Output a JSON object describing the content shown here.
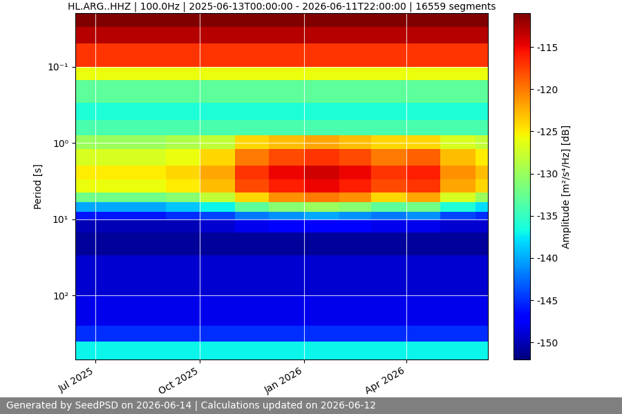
{
  "chart_data": {
    "type": "heatmap",
    "title": "HL.ARG..HHZ | 100.0Hz | 2025-06-13T00:00:00 - 2026-06-11T22:00:00 | 16559 segments",
    "y_label": "Period [s]",
    "colorbar_label": "Amplitude [m²/s⁴/Hz] [dB]",
    "footer": "Generated by SeedPSD on 2026-06-14 | Calculations updated on 2026-06-12",
    "log": "y",
    "grid": true,
    "xlim": [
      "2025-06-13T00:00:00",
      "2026-06-11T22:00:00"
    ],
    "xticks": [
      {
        "value": "2025-07-01",
        "label": "Jul 2025"
      },
      {
        "value": "2025-10-01",
        "label": "Oct 2025"
      },
      {
        "value": "2026-01-01",
        "label": "Jan 2026"
      },
      {
        "value": "2026-04-01",
        "label": "Apr 2026"
      }
    ],
    "ylim": [
      686,
      0.02
    ],
    "yticks": [
      {
        "value": 0.1,
        "label": "10⁻¹"
      },
      {
        "value": 1,
        "label": "10⁰"
      },
      {
        "value": 10,
        "label": "10¹"
      },
      {
        "value": 100,
        "label": "10²"
      }
    ],
    "clim": [
      -152,
      -111
    ],
    "cticks": [
      -150,
      -145,
      -140,
      -135,
      -130,
      -125,
      -120,
      -115
    ],
    "x_edges": [
      "2025-06-13T00:00:00",
      "2025-07-01T00:00:00",
      "2025-08-01T00:00:00",
      "2025-09-01T00:00:00",
      "2025-10-01T00:00:00",
      "2025-11-01T00:00:00",
      "2025-12-01T00:00:00",
      "2026-01-01T00:00:00",
      "2026-02-01T00:00:00",
      "2026-03-01T00:00:00",
      "2026-04-01T00:00:00",
      "2026-05-01T00:00:00",
      "2026-06-01T00:00:00",
      "2026-06-11T22:00:00"
    ],
    "y_edges": [
      0.02,
      0.03,
      0.05,
      0.1,
      0.15,
      0.3,
      0.5,
      0.8,
      1.2,
      2,
      3,
      4.5,
      6,
      8,
      10,
      15,
      30,
      100,
      250,
      400,
      686
    ],
    "cells": [
      [
        -110,
        -110,
        -110,
        -110,
        -110,
        -110,
        -110,
        -110,
        -110,
        -110,
        -110,
        -110,
        -110
      ],
      [
        -113,
        -113,
        -113,
        -113,
        -113,
        -113,
        -113,
        -113,
        -113,
        -113,
        -113,
        -113,
        -113
      ],
      [
        -117,
        -117,
        -117,
        -117,
        -117,
        -117,
        -117,
        -117,
        -117,
        -117,
        -117,
        -117,
        -117
      ],
      [
        -126,
        -126,
        -126,
        -126,
        -126,
        -126,
        -126,
        -126,
        -126,
        -126,
        -126,
        -126,
        -126
      ],
      [
        -133,
        -133,
        -133,
        -133,
        -133,
        -133,
        -133,
        -133,
        -133,
        -133,
        -133,
        -133,
        -133
      ],
      [
        -136,
        -136,
        -136,
        -136,
        -136,
        -136,
        -136,
        -136,
        -136,
        -136,
        -136,
        -136,
        -136
      ],
      [
        -134,
        -134,
        -134,
        -134,
        -134,
        -134,
        -134,
        -134,
        -134,
        -134,
        -134,
        -134,
        -134
      ],
      [
        -130,
        -130,
        -130,
        -129,
        -128,
        -124,
        -123,
        -122,
        -123,
        -124,
        -124,
        -127,
        -128
      ],
      [
        -127,
        -127,
        -127,
        -126,
        -124,
        -120,
        -118,
        -117,
        -118,
        -120,
        -119,
        -123,
        -125
      ],
      [
        -125,
        -125,
        -125,
        -124,
        -122,
        -117,
        -115,
        -114,
        -115,
        -117,
        -116,
        -121,
        -123
      ],
      [
        -126,
        -126,
        -126,
        -125,
        -123,
        -118,
        -116,
        -115,
        -116,
        -118,
        -117,
        -122,
        -124
      ],
      [
        -132,
        -132,
        -132,
        -131,
        -128,
        -124,
        -121,
        -120,
        -121,
        -124,
        -122,
        -127,
        -130
      ],
      [
        -140,
        -140,
        -140,
        -139,
        -137,
        -133,
        -131,
        -130,
        -131,
        -133,
        -132,
        -136,
        -138
      ],
      [
        -146,
        -146,
        -146,
        -145,
        -144,
        -142,
        -141,
        -140,
        -141,
        -142,
        -141,
        -144,
        -145
      ],
      [
        -150,
        -150,
        -150,
        -150,
        -149,
        -148,
        -147,
        -147,
        -147,
        -148,
        -148,
        -149,
        -149
      ],
      [
        -151,
        -151,
        -151,
        -151,
        -151,
        -151,
        -151,
        -151,
        -151,
        -151,
        -151,
        -151,
        -151
      ],
      [
        -149,
        -149,
        -149,
        -149,
        -149,
        -149,
        -149,
        -149,
        -149,
        -149,
        -149,
        -149,
        -149
      ],
      [
        -148,
        -148,
        -148,
        -148,
        -148,
        -148,
        -148,
        -148,
        -148,
        -148,
        -148,
        -148,
        -148
      ],
      [
        -145,
        -145,
        -145,
        -145,
        -145,
        -145,
        -145,
        -145,
        -145,
        -145,
        -145,
        -145,
        -145
      ],
      [
        -137,
        -137,
        -137,
        -137,
        -137,
        -137,
        -137,
        -137,
        -137,
        -137,
        -137,
        -137,
        -137
      ]
    ]
  }
}
